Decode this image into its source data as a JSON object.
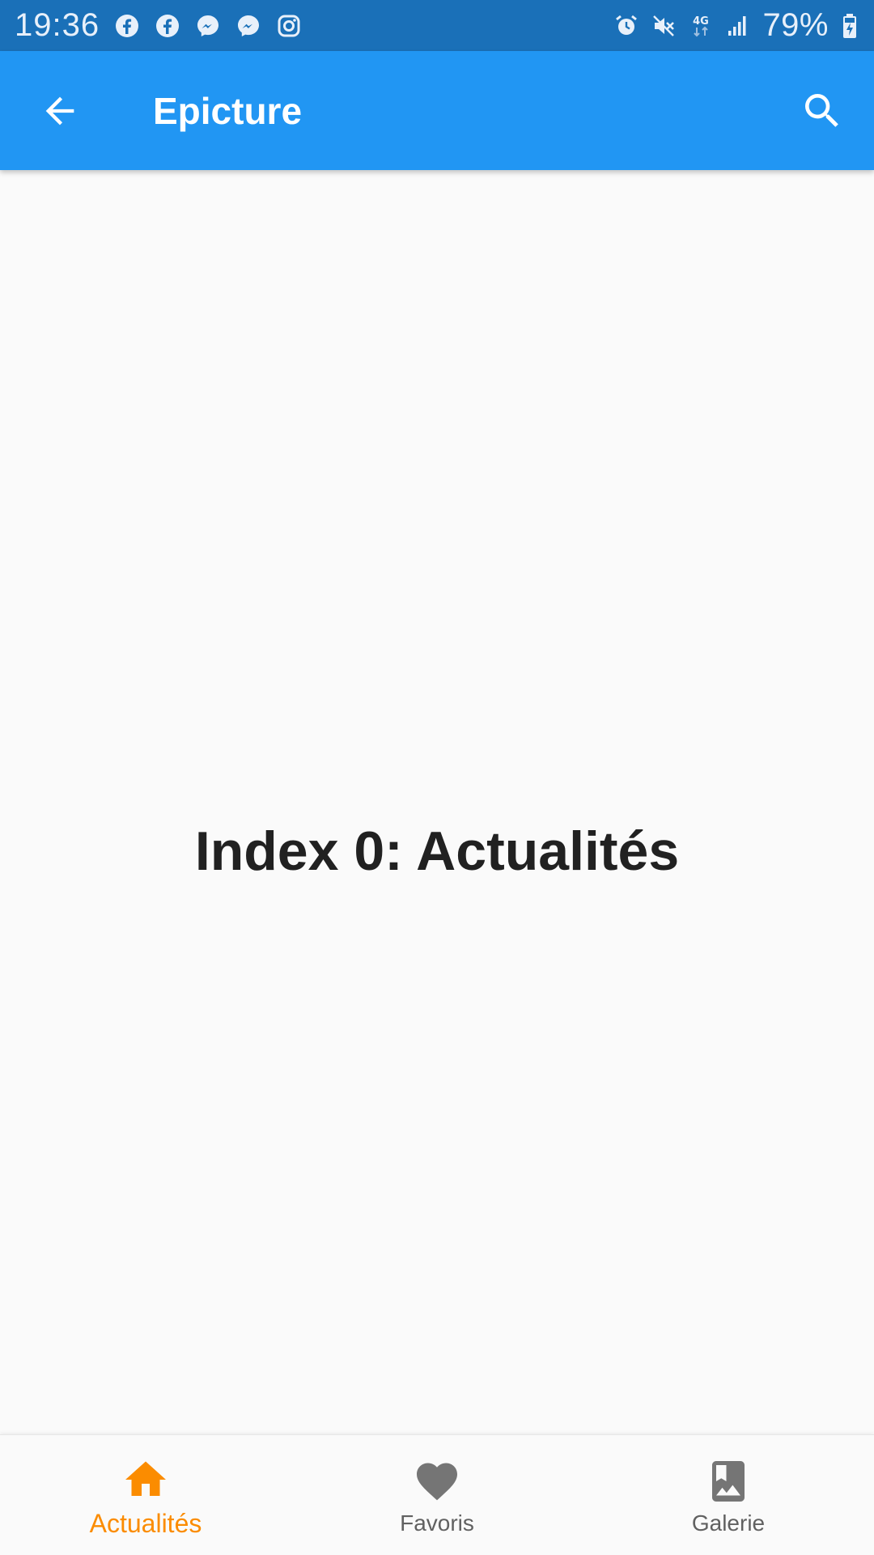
{
  "colors": {
    "status_bar": "#1a70b8",
    "app_bar": "#2196f3",
    "active": "#fb8c00",
    "inactive": "#757575",
    "body_text": "#212121",
    "background": "#fafafa"
  },
  "status_bar": {
    "time": "19:36",
    "left_icons": [
      "facebook-icon",
      "facebook-icon",
      "messenger-icon",
      "messenger-icon",
      "instagram-icon"
    ],
    "right_icons": [
      "alarm-icon",
      "mute-icon",
      "4g-icon",
      "signal-icon"
    ],
    "battery_text": "79%",
    "network_text": "4G"
  },
  "app_bar": {
    "back_icon": "arrow-back-icon",
    "title": "Epicture",
    "search_icon": "search-icon"
  },
  "main": {
    "text": "Index 0: Actualités"
  },
  "bottom_nav": {
    "items": [
      {
        "label": "Actualités",
        "icon": "home-icon",
        "active": true
      },
      {
        "label": "Favoris",
        "icon": "heart-icon",
        "active": false
      },
      {
        "label": "Galerie",
        "icon": "photo-album-icon",
        "active": false
      }
    ]
  }
}
